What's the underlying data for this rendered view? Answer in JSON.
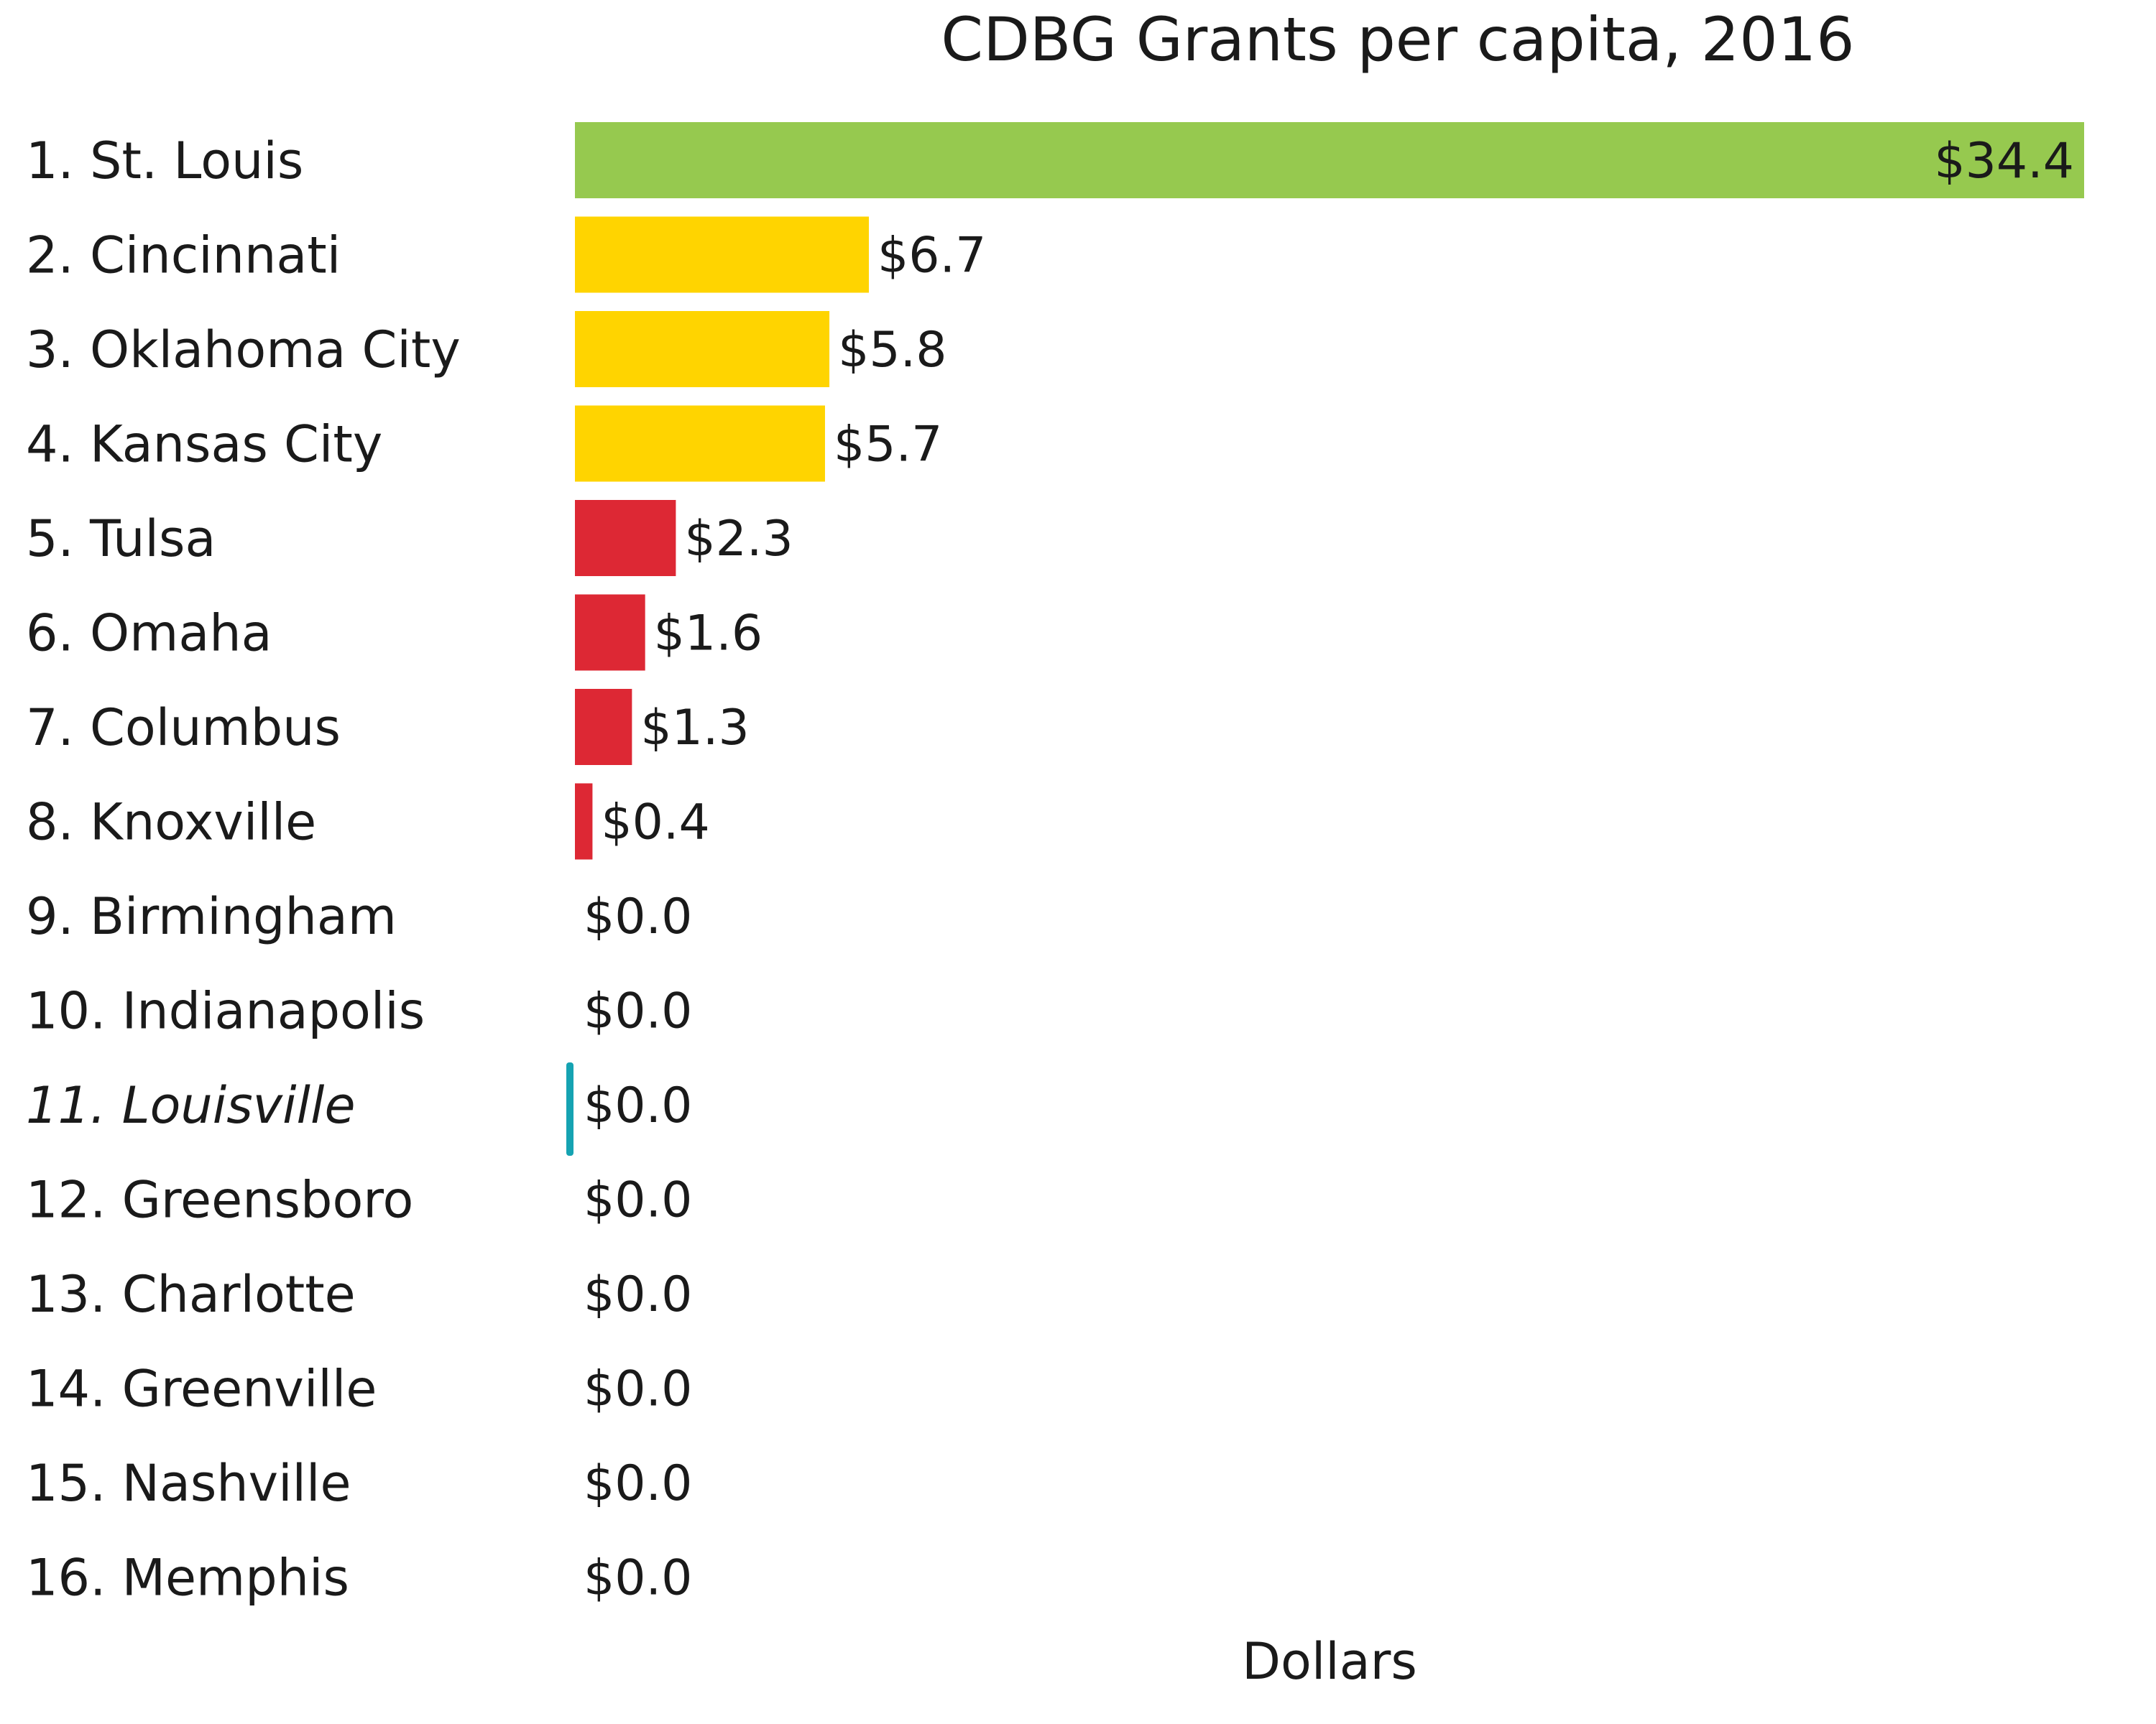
{
  "chart_data": {
    "type": "bar",
    "orientation": "horizontal",
    "title": "CDBG Grants per capita, 2016",
    "xlabel": "Dollars",
    "ylabel": "",
    "xlim": [
      0,
      34.4
    ],
    "grid": false,
    "legend": "none",
    "categories": [
      "1. St. Louis",
      "2. Cincinnati",
      "3. Oklahoma City",
      "4. Kansas City",
      "5. Tulsa",
      "6. Omaha",
      "7. Columbus",
      "8. Knoxville",
      "9. Birmingham",
      "10. Indianapolis",
      "11. Louisville",
      "12. Greensboro",
      "13. Charlotte",
      "14. Greenville",
      "15. Nashville",
      "16. Memphis"
    ],
    "values": [
      34.4,
      6.7,
      5.8,
      5.7,
      2.3,
      1.6,
      1.3,
      0.4,
      0.0,
      0.0,
      0.0,
      0.0,
      0.0,
      0.0,
      0.0,
      0.0
    ],
    "value_labels": [
      "$34.4",
      "$6.7",
      "$5.8",
      "$5.7",
      "$2.3",
      "$1.6",
      "$1.3",
      "$0.4",
      "$0.0",
      "$0.0",
      "$0.0",
      "$0.0",
      "$0.0",
      "$0.0",
      "$0.0",
      "$0.0"
    ],
    "bar_colors": [
      "#96c94f",
      "#ffd400",
      "#ffd400",
      "#ffd400",
      "#dd2834",
      "#dd2834",
      "#dd2834",
      "#dd2834",
      "#dd2834",
      "#dd2834",
      "#dd2834",
      "#dd2834",
      "#dd2834",
      "#dd2834",
      "#dd2834",
      "#dd2834"
    ],
    "highlight": {
      "category": "11. Louisville",
      "color": "#15a3b2"
    }
  }
}
